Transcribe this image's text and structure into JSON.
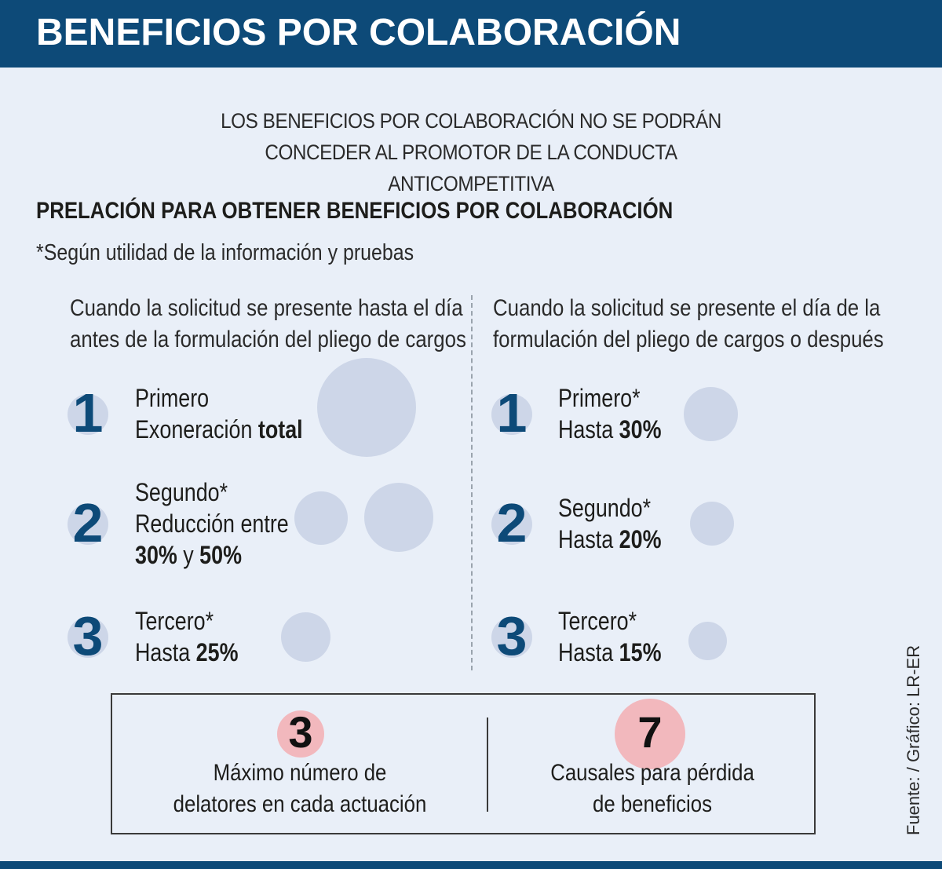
{
  "header": {
    "title": "BENEFICIOS POR COLABORACIÓN"
  },
  "notice": {
    "line1": "LOS BENEFICIOS POR COLABORACIÓN NO SE PODRÁN",
    "line2": "CONCEDER AL PROMOTOR DE LA CONDUCTA ANTICOMPETITIVA"
  },
  "section": {
    "title": "PRELACIÓN PARA OBTENER BENEFICIOS POR COLABORACIÓN",
    "note": "*Según utilidad de la información y pruebas"
  },
  "left_column": {
    "heading_line1": "Cuando la solicitud se presente hasta el día",
    "heading_line2": "antes de la formulación del pliego de cargos",
    "items": [
      {
        "number": "1",
        "rank": "Primero",
        "desc_prefix": "Exoneración ",
        "desc_bold": "total"
      },
      {
        "number": "2",
        "rank": "Segundo*",
        "desc_prefix": "Reducción entre",
        "value_a": "30%",
        "connector": " y ",
        "value_b": "50%"
      },
      {
        "number": "3",
        "rank": "Tercero*",
        "desc_prefix": "Hasta ",
        "desc_bold": "25%"
      }
    ]
  },
  "right_column": {
    "heading_line1": "Cuando la solicitud se presente el día de la",
    "heading_line2": "formulación del pliego de cargos o después",
    "items": [
      {
        "number": "1",
        "rank": "Primero*",
        "desc_prefix": "Hasta ",
        "desc_bold": "30%"
      },
      {
        "number": "2",
        "rank": "Segundo*",
        "desc_prefix": "Hasta ",
        "desc_bold": "20%"
      },
      {
        "number": "3",
        "rank": "Tercero*",
        "desc_prefix": "Hasta ",
        "desc_bold": "15%"
      }
    ]
  },
  "stats": [
    {
      "value": "3",
      "label_line1": "Máximo número de",
      "label_line2": "delatores en cada actuación"
    },
    {
      "value": "7",
      "label_line1": "Causales para pérdida",
      "label_line2": "de beneficios"
    }
  ],
  "source": "Fuente: / Gráfico: LR-ER",
  "colors": {
    "header": "#0d4a78",
    "background": "#e9eff8",
    "bubble": "#cdd6e8",
    "stat_circle": "#f2b8bd"
  }
}
